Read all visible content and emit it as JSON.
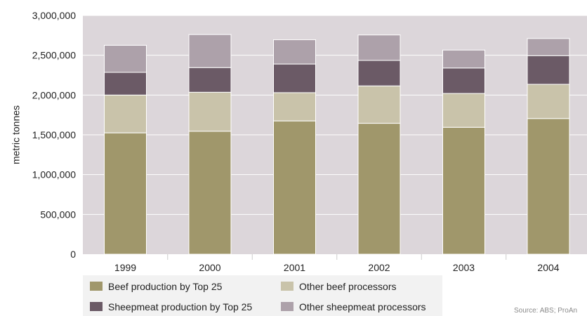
{
  "chart_data": {
    "type": "bar",
    "stacked": true,
    "categories": [
      "1999",
      "2000",
      "2001",
      "2002",
      "2003",
      "2004"
    ],
    "series": [
      {
        "name": "Beef production by Top 25",
        "color": "#a0976b",
        "values": [
          1525000,
          1545000,
          1675000,
          1645000,
          1595000,
          1705000
        ]
      },
      {
        "name": "Other beef processors",
        "color": "#c9c3aa",
        "values": [
          475000,
          490000,
          355000,
          470000,
          425000,
          430000
        ]
      },
      {
        "name": "Sheepmeat production by Top 25",
        "color": "#6b5a66",
        "values": [
          285000,
          310000,
          360000,
          320000,
          320000,
          360000
        ]
      },
      {
        "name": "Other sheepmeat processors",
        "color": "#ada1aa",
        "values": [
          340000,
          415000,
          305000,
          320000,
          225000,
          215000
        ]
      }
    ],
    "y_ticks": [
      "0",
      "500,000",
      "1,000,000",
      "1,500,000",
      "2,000,000",
      "2,500,000",
      "3,000,000"
    ],
    "ylim": [
      0,
      3000000
    ],
    "ylabel": "metric tonnes",
    "xlabel": "",
    "title": "",
    "grid": true,
    "plot_background": "#dcd6da",
    "legend_position": "bottom-left",
    "source": "Source: ABS; ProAn"
  }
}
